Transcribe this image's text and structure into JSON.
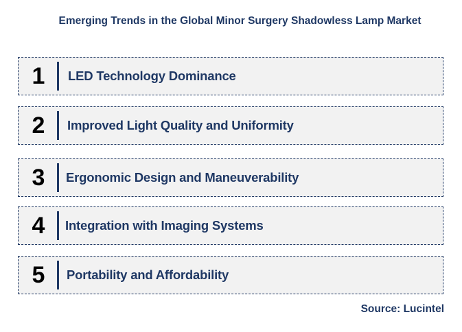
{
  "title": "Emerging Trends in the Global Minor Surgery Shadowless Lamp Market",
  "trends": [
    {
      "number": "1",
      "label": "LED Technology Dominance"
    },
    {
      "number": "2",
      "label": "Improved Light Quality and Uniformity"
    },
    {
      "number": "3",
      "label": "Ergonomic Design and Maneuverability"
    },
    {
      "number": "4",
      "label": "Integration with Imaging Systems"
    },
    {
      "number": "5",
      "label": "Portability and Affordability"
    }
  ],
  "source": "Source: Lucintel",
  "colors": {
    "accent": "#1f3864",
    "box_fill": "#f2f2f2",
    "number": "#000000"
  }
}
